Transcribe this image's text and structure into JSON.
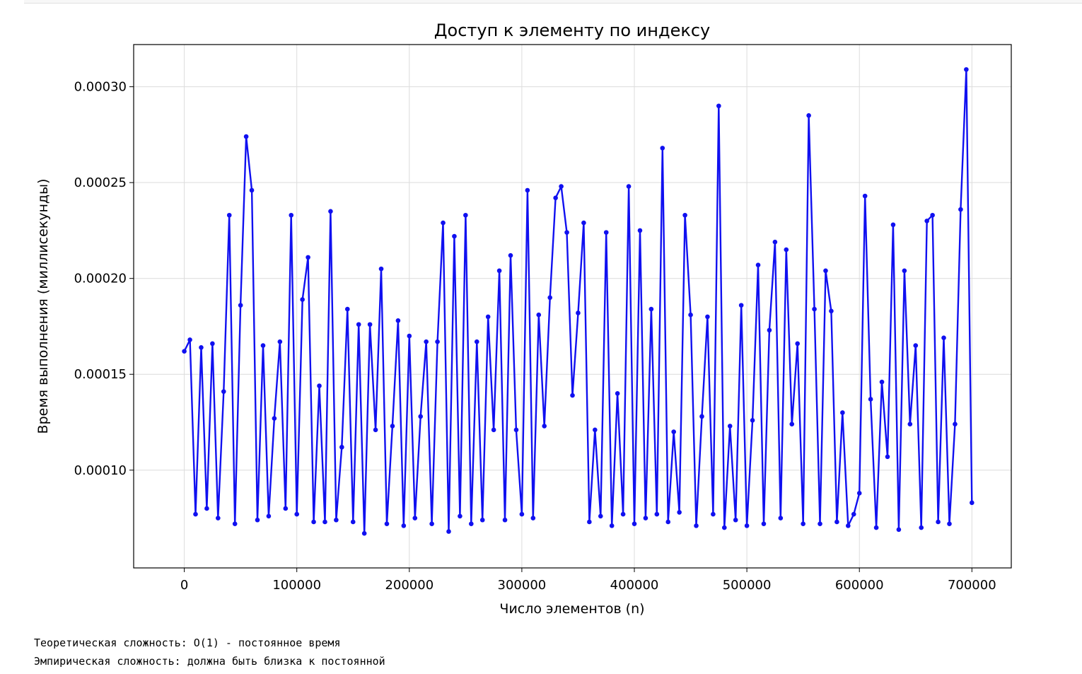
{
  "output_lines": [
    "Теоретическая сложность: O(1) - постоянное время",
    "Эмпирическая сложность: должна быть близка к постоянной"
  ],
  "chart_data": {
    "type": "line",
    "title": "Доступ к элементу по индексу",
    "xlabel": "Число элементов (n)",
    "ylabel": "Время выполнения (миллисекунды)",
    "xlim": [
      -45000,
      735000
    ],
    "ylim": [
      4.9e-05,
      0.000322
    ],
    "xticks": [
      0,
      100000,
      200000,
      300000,
      400000,
      500000,
      600000,
      700000
    ],
    "yticks": [
      0.0001,
      0.00015,
      0.0002,
      0.00025,
      0.0003
    ],
    "xtick_labels": [
      "0",
      "100000",
      "200000",
      "300000",
      "400000",
      "500000",
      "600000",
      "700000"
    ],
    "ytick_labels": [
      "0.00010",
      "0.00015",
      "0.00020",
      "0.00025",
      "0.00030"
    ],
    "grid": true,
    "line_color": "#1010f0",
    "marker": "circle",
    "series": [
      {
        "x": [
          0,
          5000,
          10000,
          15000,
          20000,
          25000,
          30000,
          35000,
          40000,
          45000,
          50000,
          55000,
          60000,
          65000,
          70000,
          75000,
          80000,
          85000,
          90000,
          95000,
          100000,
          105000,
          110000,
          115000,
          120000,
          125000,
          130000,
          135000,
          140000,
          145000,
          150000,
          155000,
          160000,
          165000,
          170000,
          175000,
          180000,
          185000,
          190000,
          195000,
          200000,
          205000,
          210000,
          215000,
          220000,
          225000,
          230000,
          235000,
          240000,
          245000,
          250000,
          255000,
          260000,
          265000,
          270000,
          275000,
          280000,
          285000,
          290000,
          295000,
          300000,
          305000,
          310000,
          315000,
          320000,
          325000,
          330000,
          335000,
          340000,
          345000,
          350000,
          355000,
          360000,
          365000,
          370000,
          375000,
          380000,
          385000,
          390000,
          395000,
          400000,
          405000,
          410000,
          415000,
          420000,
          425000,
          430000,
          435000,
          440000,
          445000,
          450000,
          455000,
          460000,
          465000,
          470000,
          475000,
          480000,
          485000,
          490000,
          495000,
          500000,
          505000,
          510000,
          515000,
          520000,
          525000,
          530000,
          535000,
          540000,
          545000,
          550000,
          555000,
          560000,
          565000,
          570000,
          575000,
          580000,
          585000,
          590000,
          595000,
          600000,
          605000,
          610000,
          615000,
          620000,
          625000,
          630000,
          635000,
          640000,
          645000,
          650000,
          655000,
          660000,
          665000,
          670000,
          675000,
          680000,
          685000,
          690000,
          695000,
          700000
        ],
        "y": [
          0.000162,
          0.000168,
          7.7e-05,
          0.000164,
          8e-05,
          0.000166,
          7.5e-05,
          0.000141,
          0.000233,
          7.2e-05,
          0.000186,
          0.000274,
          0.000246,
          7.4e-05,
          0.000165,
          7.6e-05,
          0.000127,
          0.000167,
          8e-05,
          0.000233,
          7.7e-05,
          0.000189,
          0.000211,
          7.3e-05,
          0.000144,
          7.3e-05,
          0.000235,
          7.4e-05,
          0.000112,
          0.000184,
          7.3e-05,
          0.000176,
          6.7e-05,
          0.000176,
          0.000121,
          0.000205,
          7.2e-05,
          0.000123,
          0.000178,
          7.1e-05,
          0.00017,
          7.5e-05,
          0.000128,
          0.000167,
          7.2e-05,
          0.000167,
          0.000229,
          6.8e-05,
          0.000222,
          7.6e-05,
          0.000233,
          7.2e-05,
          0.000167,
          7.4e-05,
          0.00018,
          0.000121,
          0.000204,
          7.4e-05,
          0.000212,
          0.000121,
          7.7e-05,
          0.000246,
          7.5e-05,
          0.000181,
          0.000123,
          0.00019,
          0.000242,
          0.000248,
          0.000224,
          0.000139,
          0.000182,
          0.000229,
          7.3e-05,
          0.000121,
          7.6e-05,
          0.000224,
          7.1e-05,
          0.00014,
          7.7e-05,
          0.000248,
          7.2e-05,
          0.000225,
          7.5e-05,
          0.000184,
          7.7e-05,
          0.000268,
          7.3e-05,
          0.00012,
          7.8e-05,
          0.000233,
          0.000181,
          7.1e-05,
          0.000128,
          0.00018,
          7.7e-05,
          0.00029,
          7e-05,
          0.000123,
          7.4e-05,
          0.000186,
          7.1e-05,
          0.000126,
          0.000207,
          7.2e-05,
          0.000173,
          0.000219,
          7.5e-05,
          0.000215,
          0.000124,
          0.000166,
          7.2e-05,
          0.000285,
          0.000184,
          7.2e-05,
          0.000204,
          0.000183,
          7.3e-05,
          0.00013,
          7.1e-05,
          7.7e-05,
          8.8e-05,
          0.000243,
          0.000137,
          7e-05,
          0.000146,
          0.000107,
          0.000228,
          6.9e-05,
          0.000204,
          0.000124,
          0.000165,
          7e-05,
          0.00023,
          0.000233,
          7.3e-05,
          0.000169,
          7.2e-05,
          0.000124,
          0.000236,
          0.000309,
          8.3e-05
        ]
      }
    ]
  }
}
